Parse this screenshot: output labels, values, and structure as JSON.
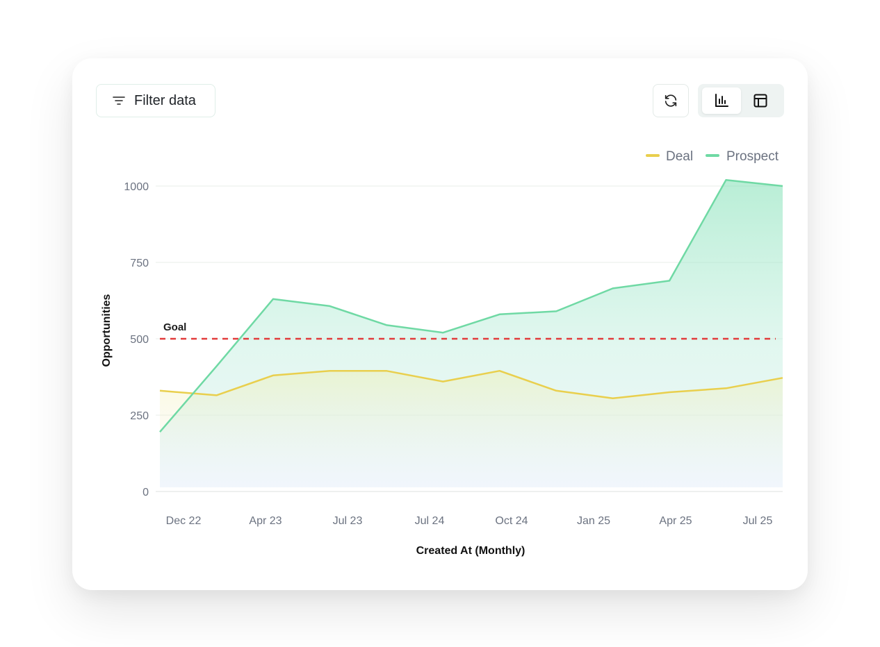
{
  "toolbar": {
    "filter_label": "Filter data",
    "filter_icon": "filter-icon",
    "refresh_icon": "refresh-icon",
    "view_options": [
      {
        "icon": "bar-chart-icon",
        "active": true
      },
      {
        "icon": "table-icon",
        "active": false
      }
    ]
  },
  "colors": {
    "deal": "#e9cf4d",
    "prospect": "#6fd9a4",
    "goal": "#e23b3b",
    "grid": "#e8ecea"
  },
  "chart_data": {
    "type": "area",
    "xlabel": "Created At (Monthly)",
    "ylabel": "Opportunities",
    "ylim": [
      0,
      1000
    ],
    "y_ticks": [
      0,
      250,
      500,
      750,
      1000
    ],
    "x_tick_labels": [
      "Dec 22",
      "Apr 23",
      "Jul 23",
      "Jul 24",
      "Oct 24",
      "Jan 25",
      "Apr 25",
      "Jul 25"
    ],
    "legend_position": "top-right",
    "grid": true,
    "series": [
      {
        "name": "Deal",
        "values": [
          330,
          315,
          380,
          395,
          395,
          360,
          395,
          330,
          305,
          325,
          338,
          372
        ]
      },
      {
        "name": "Prospect",
        "values": [
          195,
          410,
          630,
          607,
          545,
          520,
          580,
          590,
          665,
          690,
          1020,
          1000
        ]
      }
    ],
    "goal": {
      "label": "Goal",
      "value": 500
    }
  }
}
